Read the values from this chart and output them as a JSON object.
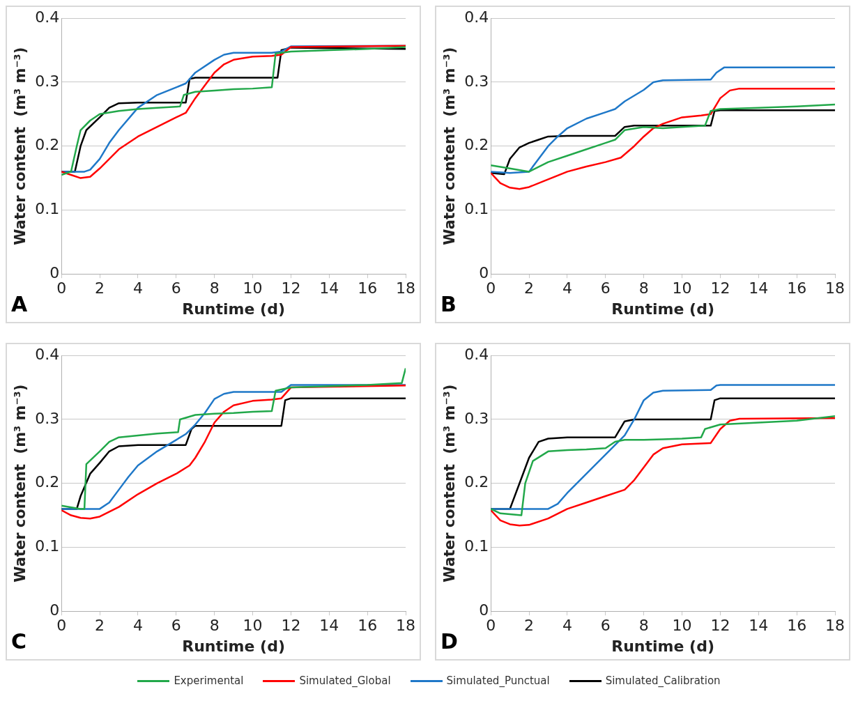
{
  "chart_data": [
    {
      "type": "line",
      "xlabel": "Runtime (d)",
      "ylabel": "Water content  (m³ m⁻³)",
      "annotations": [
        "A"
      ],
      "xlim": [
        0,
        18
      ],
      "xticks": [
        0,
        2,
        4,
        6,
        8,
        10,
        12,
        14,
        16,
        18
      ],
      "ylim": [
        0,
        0.4
      ],
      "yticks": [
        0,
        0.1,
        0.2,
        0.3,
        0.4
      ],
      "grid": "y",
      "series": [
        {
          "color": "#22a84a",
          "x": [
            0,
            0.5,
            0.8,
            1,
            1.5,
            2,
            3,
            4,
            5,
            6.2,
            6.4,
            7,
            8,
            9,
            10,
            11,
            11.2,
            12,
            14,
            16,
            18
          ],
          "values": [
            0.155,
            0.16,
            0.2,
            0.225,
            0.24,
            0.25,
            0.255,
            0.258,
            0.26,
            0.262,
            0.28,
            0.285,
            0.287,
            0.289,
            0.29,
            0.292,
            0.345,
            0.348,
            0.35,
            0.352,
            0.355
          ]
        },
        {
          "color": "#ff0000",
          "x": [
            0,
            0.5,
            1,
            1.5,
            2,
            3,
            4,
            5,
            6,
            6.5,
            7,
            7.5,
            8,
            8.5,
            9,
            10,
            11,
            11.5,
            12,
            18
          ],
          "values": [
            0.16,
            0.155,
            0.15,
            0.152,
            0.165,
            0.195,
            0.215,
            0.23,
            0.245,
            0.252,
            0.275,
            0.295,
            0.315,
            0.328,
            0.335,
            0.34,
            0.341,
            0.343,
            0.355,
            0.357
          ]
        },
        {
          "color": "#1f78c8",
          "x": [
            0,
            1.2,
            1.5,
            2,
            2.5,
            3,
            4,
            5,
            6,
            6.5,
            7,
            8,
            8.5,
            9,
            11,
            11.5,
            12,
            18
          ],
          "values": [
            0.16,
            0.16,
            0.163,
            0.18,
            0.205,
            0.225,
            0.26,
            0.28,
            0.292,
            0.298,
            0.315,
            0.335,
            0.343,
            0.346,
            0.346,
            0.348,
            0.356,
            0.357
          ]
        },
        {
          "color": "#000000",
          "x": [
            0,
            0.7,
            1,
            1.3,
            2,
            2.5,
            3,
            4,
            6.5,
            6.7,
            7,
            11.3,
            11.5,
            12,
            18
          ],
          "values": [
            0.16,
            0.16,
            0.2,
            0.225,
            0.245,
            0.26,
            0.267,
            0.268,
            0.268,
            0.305,
            0.307,
            0.307,
            0.35,
            0.354,
            0.352
          ]
        }
      ]
    },
    {
      "type": "line",
      "xlabel": "Runtime (d)",
      "ylabel": "Water content  (m³ m⁻³)",
      "annotations": [
        "B"
      ],
      "xlim": [
        0,
        18
      ],
      "xticks": [
        0,
        2,
        4,
        6,
        8,
        10,
        12,
        14,
        16,
        18
      ],
      "ylim": [
        0,
        0.4
      ],
      "yticks": [
        0,
        0.1,
        0.2,
        0.3,
        0.4
      ],
      "grid": "y",
      "series": [
        {
          "color": "#22a84a",
          "x": [
            0,
            1,
            2,
            3,
            4,
            5,
            6,
            6.5,
            7,
            8,
            9,
            10,
            11.2,
            11.5,
            12,
            14,
            16,
            18
          ],
          "values": [
            0.17,
            0.165,
            0.16,
            0.175,
            0.185,
            0.195,
            0.205,
            0.21,
            0.225,
            0.23,
            0.228,
            0.23,
            0.232,
            0.255,
            0.258,
            0.26,
            0.262,
            0.265
          ]
        },
        {
          "color": "#ff0000",
          "x": [
            0,
            0.5,
            1,
            1.5,
            2,
            3,
            4,
            5,
            6,
            6.8,
            7.5,
            8,
            8.5,
            9,
            10,
            11,
            11.5,
            12,
            12.5,
            13,
            18
          ],
          "values": [
            0.158,
            0.142,
            0.135,
            0.133,
            0.136,
            0.148,
            0.16,
            0.168,
            0.175,
            0.182,
            0.2,
            0.215,
            0.228,
            0.235,
            0.245,
            0.248,
            0.25,
            0.275,
            0.287,
            0.29,
            0.29
          ]
        },
        {
          "color": "#1f78c8",
          "x": [
            0,
            1,
            2,
            2.5,
            3,
            3.5,
            4,
            5,
            6,
            6.5,
            7,
            8,
            8.5,
            9,
            11.5,
            11.8,
            12.2,
            18
          ],
          "values": [
            0.16,
            0.158,
            0.16,
            0.18,
            0.2,
            0.215,
            0.228,
            0.243,
            0.253,
            0.258,
            0.27,
            0.288,
            0.3,
            0.303,
            0.304,
            0.315,
            0.323,
            0.323
          ]
        },
        {
          "color": "#000000",
          "x": [
            0,
            0.7,
            1,
            1.5,
            2,
            2.5,
            3,
            4,
            6.5,
            7,
            7.5,
            11.5,
            11.7,
            12,
            18
          ],
          "values": [
            0.158,
            0.156,
            0.18,
            0.198,
            0.205,
            0.21,
            0.215,
            0.216,
            0.216,
            0.23,
            0.232,
            0.232,
            0.255,
            0.256,
            0.256
          ]
        }
      ]
    },
    {
      "type": "line",
      "xlabel": "Runtime (d)",
      "ylabel": "Water content  (m³ m⁻³)",
      "annotations": [
        "C"
      ],
      "xlim": [
        0,
        18
      ],
      "xticks": [
        0,
        2,
        4,
        6,
        8,
        10,
        12,
        14,
        16,
        18
      ],
      "ylim": [
        0,
        0.4
      ],
      "yticks": [
        0,
        0.1,
        0.2,
        0.3,
        0.4
      ],
      "grid": "y",
      "series": [
        {
          "color": "#22a84a",
          "x": [
            0,
            1,
            1.2,
            1.3,
            2,
            2.5,
            3,
            4,
            5,
            6.1,
            6.2,
            7,
            8,
            9,
            10,
            11,
            11.2,
            12,
            14,
            16,
            17.8,
            18
          ],
          "values": [
            0.165,
            0.16,
            0.16,
            0.23,
            0.25,
            0.265,
            0.272,
            0.275,
            0.278,
            0.28,
            0.3,
            0.307,
            0.309,
            0.31,
            0.312,
            0.313,
            0.345,
            0.35,
            0.352,
            0.354,
            0.357,
            0.38
          ]
        },
        {
          "color": "#ff0000",
          "x": [
            0,
            0.5,
            1,
            1.5,
            2,
            3,
            4,
            5,
            6,
            6.7,
            7,
            7.5,
            8,
            8.5,
            9,
            10,
            11,
            11.5,
            12,
            18
          ],
          "values": [
            0.158,
            0.15,
            0.146,
            0.145,
            0.148,
            0.163,
            0.183,
            0.2,
            0.215,
            0.228,
            0.24,
            0.265,
            0.295,
            0.312,
            0.322,
            0.329,
            0.331,
            0.333,
            0.35,
            0.353
          ]
        },
        {
          "color": "#1f78c8",
          "x": [
            0,
            2,
            2.5,
            3,
            3.5,
            4,
            5,
            6,
            6.5,
            7,
            7.5,
            8,
            8.5,
            9,
            11.5,
            12,
            18
          ],
          "values": [
            0.16,
            0.16,
            0.17,
            0.19,
            0.21,
            0.228,
            0.25,
            0.268,
            0.277,
            0.292,
            0.31,
            0.332,
            0.34,
            0.343,
            0.343,
            0.354,
            0.354
          ]
        },
        {
          "color": "#000000",
          "x": [
            0,
            0.8,
            1,
            1.5,
            2,
            2.5,
            3,
            4,
            6.5,
            6.8,
            7,
            11.5,
            11.7,
            12,
            18
          ],
          "values": [
            0.16,
            0.16,
            0.18,
            0.215,
            0.232,
            0.25,
            0.258,
            0.26,
            0.26,
            0.285,
            0.29,
            0.29,
            0.33,
            0.333,
            0.333
          ]
        }
      ]
    },
    {
      "type": "line",
      "xlabel": "Runtime (d)",
      "ylabel": "Water content  (m³ m⁻³)",
      "annotations": [
        "D"
      ],
      "xlim": [
        0,
        18
      ],
      "xticks": [
        0,
        2,
        4,
        6,
        8,
        10,
        12,
        14,
        16,
        18
      ],
      "ylim": [
        0,
        0.4
      ],
      "yticks": [
        0,
        0.1,
        0.2,
        0.3,
        0.4
      ],
      "grid": "y",
      "legend": "bottom",
      "series": [
        {
          "name": "Experimental",
          "color": "#22a84a",
          "x": [
            0,
            0.5,
            1.6,
            1.8,
            2.2,
            3,
            4,
            5,
            6,
            6.5,
            7,
            8,
            9,
            10,
            11,
            11.2,
            12,
            14,
            16,
            18
          ],
          "values": [
            0.16,
            0.153,
            0.15,
            0.2,
            0.235,
            0.25,
            0.252,
            0.253,
            0.255,
            0.265,
            0.268,
            0.268,
            0.269,
            0.27,
            0.272,
            0.285,
            0.292,
            0.295,
            0.298,
            0.305
          ]
        },
        {
          "name": "Simulated_Global",
          "color": "#ff0000",
          "x": [
            0,
            0.5,
            1,
            1.5,
            2,
            3,
            4,
            5,
            6,
            7,
            7.5,
            8,
            8.5,
            9,
            10,
            11.5,
            12,
            12.5,
            13,
            18
          ],
          "values": [
            0.158,
            0.142,
            0.136,
            0.134,
            0.135,
            0.145,
            0.16,
            0.17,
            0.18,
            0.19,
            0.205,
            0.225,
            0.245,
            0.255,
            0.261,
            0.263,
            0.285,
            0.298,
            0.301,
            0.302
          ]
        },
        {
          "name": "Simulated_Punctual",
          "color": "#1f78c8",
          "x": [
            0,
            3,
            3.5,
            4,
            5,
            6,
            7,
            7.5,
            8,
            8.5,
            9,
            11.5,
            11.8,
            12,
            18
          ],
          "values": [
            0.16,
            0.16,
            0.168,
            0.185,
            0.215,
            0.245,
            0.275,
            0.3,
            0.33,
            0.342,
            0.345,
            0.346,
            0.353,
            0.354,
            0.354
          ]
        },
        {
          "name": "Simulated_Calibration",
          "color": "#000000",
          "x": [
            0,
            1,
            1.5,
            2,
            2.5,
            3,
            4,
            6.5,
            7,
            7.5,
            11.5,
            11.7,
            12,
            18
          ],
          "values": [
            0.16,
            0.16,
            0.2,
            0.24,
            0.265,
            0.27,
            0.272,
            0.272,
            0.297,
            0.3,
            0.3,
            0.33,
            0.333,
            0.333
          ]
        }
      ]
    }
  ]
}
